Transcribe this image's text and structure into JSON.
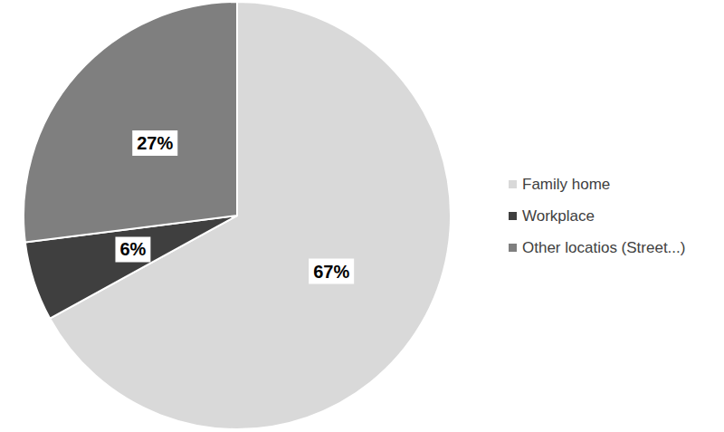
{
  "chart_data": {
    "type": "pie",
    "categories": [
      "Family home",
      "Workplace",
      "Other locatios (Street...)"
    ],
    "values": [
      67,
      6,
      27
    ],
    "value_labels": [
      "67%",
      "6%",
      "27%"
    ],
    "colors": [
      "#d9d9d9",
      "#3f3f3f",
      "#7f7f7f"
    ],
    "data_labels": true,
    "legend": "right"
  }
}
